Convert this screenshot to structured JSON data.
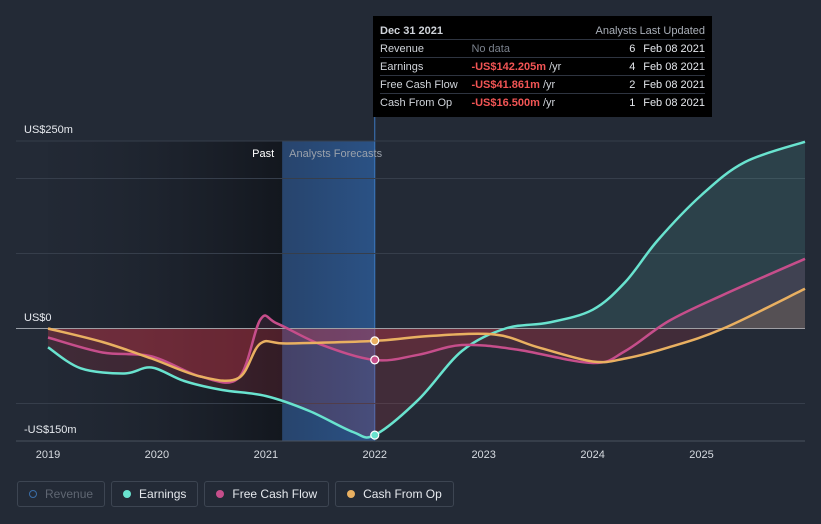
{
  "chart_data": {
    "type": "line",
    "y_axis": {
      "ylim": [
        -150,
        250
      ],
      "labels": [
        "US$250m",
        "US$0",
        "-US$150m"
      ],
      "gridlines": [
        250,
        200,
        100,
        0,
        -100
      ]
    },
    "x_axis": {
      "xlim": [
        2019,
        2025.95
      ],
      "ticks": [
        "2019",
        "2020",
        "2021",
        "2022",
        "2023",
        "2024",
        "2025"
      ]
    },
    "regions": {
      "past_label": "Past",
      "forecast_label": "Analysts Forecasts",
      "past_start": 2019,
      "forecast_band": [
        2021.15,
        2022.0
      ]
    },
    "series": [
      {
        "name": "Earnings",
        "color": "#69e3cf",
        "points": [
          [
            2019,
            -25
          ],
          [
            2019.3,
            -53
          ],
          [
            2019.7,
            -60
          ],
          [
            2019.95,
            -52
          ],
          [
            2020.25,
            -70
          ],
          [
            2020.6,
            -82
          ],
          [
            2021.0,
            -90
          ],
          [
            2021.4,
            -110
          ],
          [
            2021.8,
            -138
          ],
          [
            2022.0,
            -142
          ],
          [
            2022.4,
            -95
          ],
          [
            2022.8,
            -30
          ],
          [
            2023.2,
            0
          ],
          [
            2023.6,
            8
          ],
          [
            2024.0,
            25
          ],
          [
            2024.3,
            62
          ],
          [
            2024.6,
            118
          ],
          [
            2025.0,
            178
          ],
          [
            2025.4,
            222
          ],
          [
            2025.95,
            249
          ]
        ]
      },
      {
        "name": "Free Cash Flow",
        "color": "#c64e8b",
        "points": [
          [
            2019,
            -12
          ],
          [
            2019.5,
            -32
          ],
          [
            2019.95,
            -37
          ],
          [
            2020.4,
            -64
          ],
          [
            2020.75,
            -66
          ],
          [
            2020.95,
            12
          ],
          [
            2021.1,
            7
          ],
          [
            2021.5,
            -21
          ],
          [
            2022.0,
            -42
          ],
          [
            2022.4,
            -35
          ],
          [
            2022.8,
            -22
          ],
          [
            2023.3,
            -28
          ],
          [
            2024.0,
            -46
          ],
          [
            2024.3,
            -30
          ],
          [
            2024.7,
            10
          ],
          [
            2025.2,
            45
          ],
          [
            2025.95,
            93
          ]
        ]
      },
      {
        "name": "Cash From Op",
        "color": "#e9b061",
        "points": [
          [
            2019,
            0
          ],
          [
            2019.5,
            -18
          ],
          [
            2019.95,
            -40
          ],
          [
            2020.4,
            -64
          ],
          [
            2020.75,
            -66
          ],
          [
            2020.95,
            -20
          ],
          [
            2021.2,
            -20
          ],
          [
            2022.0,
            -16.5
          ],
          [
            2022.5,
            -10
          ],
          [
            2023.1,
            -8
          ],
          [
            2023.5,
            -25
          ],
          [
            2024.0,
            -44
          ],
          [
            2024.3,
            -40
          ],
          [
            2024.7,
            -25
          ],
          [
            2025.2,
            0
          ],
          [
            2025.95,
            53
          ]
        ]
      }
    ],
    "markers": [
      {
        "series": "Earnings",
        "x": 2022.0,
        "y": -142.205
      },
      {
        "series": "Free Cash Flow",
        "x": 2022.0,
        "y": -41.861
      },
      {
        "series": "Cash From Op",
        "x": 2022.0,
        "y": -16.5
      }
    ]
  },
  "tooltip": {
    "date": "Dec 31 2021",
    "col_analysts": "Analysts",
    "col_updated": "Last Updated",
    "rows": [
      {
        "label": "Revenue",
        "value": "No data",
        "unit": "",
        "analysts": "6",
        "updated": "Feb 08 2021"
      },
      {
        "label": "Earnings",
        "value": "-US$142.205m",
        "unit": "/yr",
        "analysts": "4",
        "updated": "Feb 08 2021"
      },
      {
        "label": "Free Cash Flow",
        "value": "-US$41.861m",
        "unit": "/yr",
        "analysts": "2",
        "updated": "Feb 08 2021"
      },
      {
        "label": "Cash From Op",
        "value": "-US$16.500m",
        "unit": "/yr",
        "analysts": "1",
        "updated": "Feb 08 2021"
      }
    ]
  },
  "legend": {
    "items": [
      {
        "label": "Revenue",
        "color": "#3a6ea8",
        "active": false
      },
      {
        "label": "Earnings",
        "color": "#69e3cf",
        "active": true
      },
      {
        "label": "Free Cash Flow",
        "color": "#c64e8b",
        "active": true
      },
      {
        "label": "Cash From Op",
        "color": "#e9b061",
        "active": true
      }
    ]
  }
}
